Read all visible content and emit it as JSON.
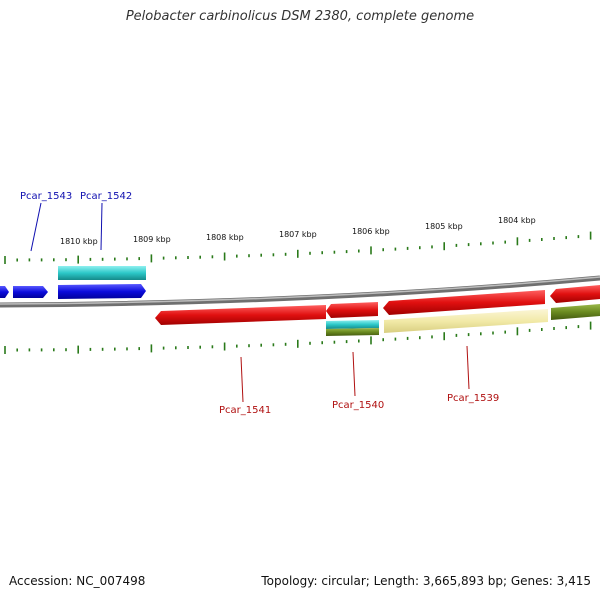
{
  "title": "Pelobacter carbinolicus DSM 2380, complete genome",
  "footer": {
    "accession": "Accession: NC_007498",
    "summary": "Topology: circular; Length: 3,665,893 bp; Genes: 3,415"
  },
  "colors": {
    "forward_cds": "#0b0bdc",
    "reverse_cds": "#e01010",
    "cyan_feature": "#2cc8c8",
    "olive_feature": "#6a8a20",
    "pale_feature": "#f2eaa8",
    "backbone": "#888888",
    "ticks": "#2a7a1a",
    "forward_label": "#1010b0",
    "reverse_label": "#b01010"
  },
  "axis": {
    "labels": [
      "1810 kbp",
      "1809 kbp",
      "1808 kbp",
      "1807 kbp",
      "1806 kbp",
      "1805 kbp",
      "1804 kbp"
    ]
  },
  "genes": {
    "forward": [
      "Pcar_1543",
      "Pcar_1542"
    ],
    "reverse": [
      "Pcar_1541",
      "Pcar_1540",
      "Pcar_1539"
    ]
  }
}
